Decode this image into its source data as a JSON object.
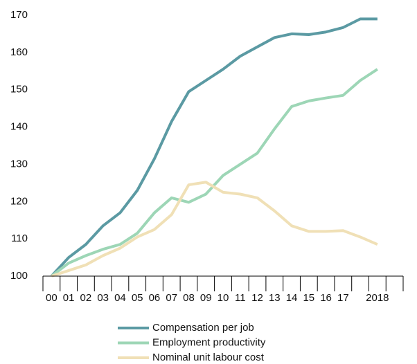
{
  "chart_data": {
    "type": "line",
    "categories": [
      "00",
      "01",
      "02",
      "03",
      "04",
      "05",
      "06",
      "07",
      "08",
      "09",
      "10",
      "11",
      "12",
      "13",
      "14",
      "15",
      "16",
      "17",
      null,
      "2018",
      null
    ],
    "series": [
      {
        "name": "Compensation per job",
        "color": "#5b9aa3",
        "values": [
          100,
          105,
          108.5,
          113.5,
          117,
          123,
          131.5,
          141.5,
          149.5,
          152.5,
          155.5,
          159,
          161.5,
          164,
          165,
          164.8,
          165.5,
          166.7,
          169,
          169,
          null
        ]
      },
      {
        "name": "Employment productivity",
        "color": "#9dd6b6",
        "values": [
          100,
          103.5,
          105.5,
          107.2,
          108.5,
          111.5,
          117,
          121,
          119.8,
          122,
          127,
          130,
          133,
          139.5,
          145.5,
          147,
          147.8,
          148.5,
          152.5,
          155.5,
          null
        ]
      },
      {
        "name": "Nominal unit labour cost",
        "color": "#f0e0b6",
        "values": [
          100,
          101.5,
          103,
          105.5,
          107.5,
          110.5,
          112.5,
          116.5,
          124.5,
          125.2,
          122.5,
          122,
          121,
          117.5,
          113.5,
          112,
          112,
          112.2,
          110.5,
          108.5,
          null
        ]
      }
    ],
    "ylim": [
      100,
      170
    ],
    "yticks": [
      100,
      110,
      120,
      130,
      140,
      150,
      160,
      170
    ],
    "grid": false
  }
}
